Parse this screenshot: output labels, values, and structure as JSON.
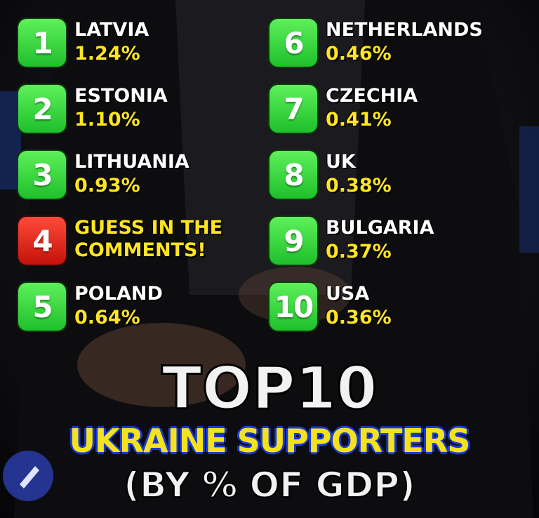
{
  "entries": [
    {
      "rank": "1",
      "country": "LATVIA",
      "share": "1.24%"
    },
    {
      "rank": "2",
      "country": "ESTONIA",
      "share": "1.10%"
    },
    {
      "rank": "3",
      "country": "LITHUANIA",
      "share": "0.93%"
    },
    {
      "rank": "4",
      "country": "GUESS IN THE COMMENTS!"
    },
    {
      "rank": "5",
      "country": "POLAND",
      "share": "0.64%"
    },
    {
      "rank": "6",
      "country": "NETHERLANDS",
      "share": "0.46%"
    },
    {
      "rank": "7",
      "country": "CZECHIA",
      "share": "0.41%"
    },
    {
      "rank": "8",
      "country": "UK",
      "share": "0.38%"
    },
    {
      "rank": "9",
      "country": "BULGARIA",
      "share": "0.37%"
    },
    {
      "rank": "10",
      "country": "USA",
      "share": "0.36%"
    }
  ],
  "title": {
    "line1": "TOP10",
    "line2": "UKRAINE SUPPORTERS",
    "line3": "(BY % OF GDP)"
  }
}
